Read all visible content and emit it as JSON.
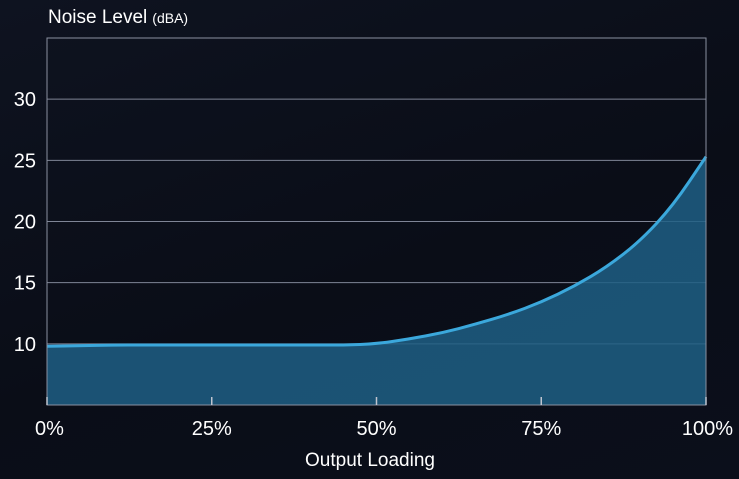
{
  "chart_data": {
    "type": "area",
    "title": "Noise Level",
    "title_unit": "(dBA)",
    "xlabel": "Output Loading",
    "x": [
      0,
      5,
      10,
      15,
      20,
      25,
      30,
      35,
      40,
      45,
      50,
      55,
      60,
      65,
      70,
      75,
      80,
      85,
      90,
      95,
      100
    ],
    "series": [
      {
        "values": [
          9.8,
          9.85,
          9.9,
          9.9,
          9.9,
          9.9,
          9.9,
          9.9,
          9.9,
          9.9,
          10.0,
          10.4,
          10.9,
          11.6,
          12.4,
          13.4,
          14.7,
          16.3,
          18.4,
          21.3,
          25.3
        ]
      }
    ],
    "xlim": [
      0,
      100
    ],
    "ylim": [
      5,
      35
    ],
    "x_ticks": [
      0,
      25,
      50,
      75,
      100
    ],
    "x_tick_labels": [
      "0%",
      "25%",
      "50%",
      "75%",
      "100%"
    ],
    "y_ticks": [
      10,
      15,
      20,
      25,
      30
    ],
    "y_tick_labels": [
      "10",
      "15",
      "20",
      "25",
      "30"
    ],
    "grid": true,
    "colors": {
      "line": "#3ba8dc",
      "fill": "#1f5f85",
      "grid": "#7f8596",
      "frame": "#8a90a0",
      "background": "#0b0f1a"
    }
  }
}
